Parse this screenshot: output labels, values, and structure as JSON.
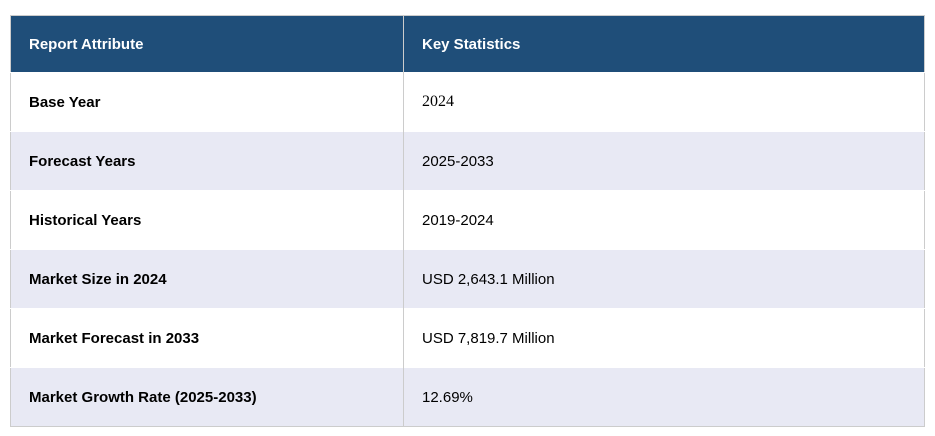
{
  "chart_data": {
    "type": "table",
    "columns": [
      "Report Attribute",
      "Key Statistics"
    ],
    "rows": [
      [
        "Base Year",
        "2024"
      ],
      [
        "Forecast Years",
        "2025-2033"
      ],
      [
        "Historical Years",
        "2019-2024"
      ],
      [
        "Market Size in 2024",
        "USD 2,643.1 Million"
      ],
      [
        "Market Forecast in 2033",
        "USD 7,819.7 Million"
      ],
      [
        "Market Growth Rate (2025-2033)",
        "12.69%"
      ]
    ]
  },
  "colors": {
    "header_bg": "#1f4e79",
    "header_text": "#ffffff",
    "row_bg": "#ffffff",
    "row_alt_bg": "#e8e9f4",
    "border": "#cccccc",
    "text": "#000000"
  }
}
